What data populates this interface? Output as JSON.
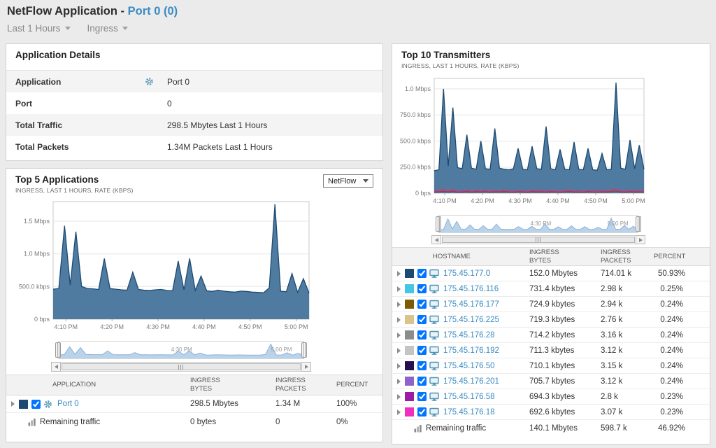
{
  "header": {
    "title_prefix": "NetFlow Application - ",
    "title_link": "Port 0 (0)",
    "time_filter": "Last 1 Hours",
    "direction_filter": "Ingress"
  },
  "application_details": {
    "title": "Application Details",
    "rows": [
      {
        "label": "Application",
        "value": "Port 0",
        "gear": true
      },
      {
        "label": "Port",
        "value": "0",
        "gear": false
      },
      {
        "label": "Total Traffic",
        "value": "298.5 Mbytes Last 1 Hours",
        "gear": false
      },
      {
        "label": "Total Packets",
        "value": "1.34M Packets  Last 1 Hours",
        "gear": false
      }
    ]
  },
  "top5": {
    "title": "Top 5 Applications",
    "subtitle": "INGRESS, LAST 1 HOURS, RATE (KBPS)",
    "source_select": "NetFlow",
    "headers": [
      {
        "l1": "APPLICATION",
        "l2": ""
      },
      {
        "l1": "INGRESS",
        "l2": "BYTES"
      },
      {
        "l1": "INGRESS",
        "l2": "PACKETS"
      },
      {
        "l1": "PERCENT",
        "l2": ""
      }
    ],
    "rows": [
      {
        "swatch": "#1c4a72",
        "name": "Port 0",
        "bytes": "298.5 Mbytes",
        "packets": "1.34 M",
        "percent": "100%"
      }
    ],
    "footer": {
      "name": "Remaining traffic",
      "bytes": "0 bytes",
      "packets": "0",
      "percent": "0%"
    }
  },
  "top10": {
    "title": "Top 10 Transmitters",
    "subtitle": "INGRESS, LAST 1 HOURS, RATE (KBPS)",
    "headers": [
      {
        "l1": "HOSTNAME",
        "l2": ""
      },
      {
        "l1": "INGRESS",
        "l2": "BYTES"
      },
      {
        "l1": "INGRESS",
        "l2": "PACKETS"
      },
      {
        "l1": "PERCENT",
        "l2": ""
      }
    ],
    "rows": [
      {
        "swatch": "#1c4a72",
        "name": "175.45.177.0",
        "bytes": "152.0 Mbytes",
        "packets": "714.01 k",
        "percent": "50.93%"
      },
      {
        "swatch": "#45c6e8",
        "name": "175.45.176.116",
        "bytes": "731.4 kbytes",
        "packets": "2.98 k",
        "percent": "0.25%"
      },
      {
        "swatch": "#7c5c00",
        "name": "175.45.176.177",
        "bytes": "724.9 kbytes",
        "packets": "2.94 k",
        "percent": "0.24%"
      },
      {
        "swatch": "#d9c48a",
        "name": "175.45.176.225",
        "bytes": "719.3 kbytes",
        "packets": "2.76 k",
        "percent": "0.24%"
      },
      {
        "swatch": "#8c8c8c",
        "name": "175.45.176.28",
        "bytes": "714.2 kbytes",
        "packets": "3.16 k",
        "percent": "0.24%"
      },
      {
        "swatch": "#c4c4c4",
        "name": "175.45.176.192",
        "bytes": "711.3 kbytes",
        "packets": "3.12 k",
        "percent": "0.24%"
      },
      {
        "swatch": "#241051",
        "name": "175.45.176.50",
        "bytes": "710.1 kbytes",
        "packets": "3.15 k",
        "percent": "0.24%"
      },
      {
        "swatch": "#8f62c9",
        "name": "175.45.176.201",
        "bytes": "705.7 kbytes",
        "packets": "3.12 k",
        "percent": "0.24%"
      },
      {
        "swatch": "#9c1ca6",
        "name": "175.45.176.58",
        "bytes": "694.3 kbytes",
        "packets": "2.8 k",
        "percent": "0.23%"
      },
      {
        "swatch": "#f02fc2",
        "name": "175.45.176.18",
        "bytes": "692.6 kbytes",
        "packets": "3.07 k",
        "percent": "0.23%"
      }
    ],
    "footer": {
      "name": "Remaining traffic",
      "bytes": "140.1 Mbytes",
      "packets": "598.7 k",
      "percent": "46.92%"
    }
  },
  "chart_data": [
    {
      "id": "top5_applications_chart",
      "type": "area",
      "title": "Top 5 Applications",
      "ylabel": "rate (kbps)",
      "ylim": [
        0,
        1800
      ],
      "yticks": [
        {
          "v": 0,
          "label": "0 bps"
        },
        {
          "v": 500,
          "label": "500.0 kbps"
        },
        {
          "v": 1000,
          "label": "1.0 Mbps"
        },
        {
          "v": 1500,
          "label": "1.5 Mbps"
        }
      ],
      "xticks": [
        "4:10 PM",
        "4:20 PM",
        "4:30 PM",
        "4:40 PM",
        "4:50 PM",
        "5:00 PM"
      ],
      "brush_labels": [
        "4:30 PM",
        "5:00 PM"
      ],
      "grid": true,
      "legend": "none",
      "series": [
        {
          "name": "Port 0",
          "fill": "#47749c",
          "stroke": "#1c4a72",
          "values": [
            460,
            470,
            1430,
            520,
            1340,
            500,
            470,
            465,
            455,
            930,
            470,
            460,
            450,
            445,
            720,
            455,
            445,
            440,
            450,
            455,
            440,
            435,
            890,
            450,
            930,
            440,
            660,
            435,
            425,
            445,
            430,
            420,
            415,
            430,
            425,
            415,
            410,
            405,
            480,
            1760,
            430,
            420,
            700,
            410,
            620,
            400
          ]
        }
      ]
    },
    {
      "id": "top10_transmitters_chart",
      "type": "area",
      "title": "Top 10 Transmitters",
      "ylabel": "rate (kbps)",
      "ylim": [
        0,
        1100
      ],
      "yticks": [
        {
          "v": 0,
          "label": "0 bps"
        },
        {
          "v": 250,
          "label": "250.0 kbps"
        },
        {
          "v": 500,
          "label": "500.0 kbps"
        },
        {
          "v": 750,
          "label": "750.0 kbps"
        },
        {
          "v": 1000,
          "label": "1.0 Mbps"
        }
      ],
      "xticks": [
        "4:10 PM",
        "4:20 PM",
        "4:30 PM",
        "4:40 PM",
        "4:50 PM",
        "5:00 PM"
      ],
      "brush_labels": [
        "4:30 PM",
        "5:00 PM"
      ],
      "grid": true,
      "legend": "none",
      "series": [
        {
          "name": "175.45.177.0",
          "fill": "#47749c",
          "stroke": "#1c4a72",
          "values": [
            215,
            225,
            1000,
            260,
            820,
            245,
            235,
            560,
            240,
            230,
            500,
            235,
            230,
            620,
            240,
            230,
            225,
            235,
            430,
            230,
            225,
            450,
            235,
            230,
            640,
            235,
            225,
            420,
            230,
            225,
            490,
            230,
            225,
            430,
            225,
            220,
            380,
            225,
            230,
            1060,
            240,
            230,
            510,
            235,
            460,
            230
          ]
        },
        {
          "name": "other-transmitters-magenta",
          "fill": "none",
          "stroke": "#c2399b",
          "values": [
            22,
            28,
            35,
            24,
            38,
            20,
            26,
            32,
            22,
            30,
            25,
            32,
            20,
            28,
            24,
            32,
            26,
            22,
            30,
            26,
            20,
            32,
            24,
            28,
            22,
            30,
            26,
            20,
            28,
            32,
            24,
            26,
            20,
            30,
            26,
            22,
            28,
            24,
            32,
            40,
            26,
            22,
            30,
            24,
            28,
            22
          ]
        },
        {
          "name": "other-transmitters-red",
          "fill": "none",
          "stroke": "#b23434",
          "values": [
            12,
            14,
            18,
            12,
            20,
            10,
            13,
            16,
            11,
            15,
            13,
            16,
            10,
            14,
            12,
            16,
            13,
            11,
            15,
            13,
            10,
            16,
            12,
            14,
            11,
            15,
            13,
            10,
            14,
            16,
            12,
            13,
            10,
            15,
            13,
            11,
            14,
            12,
            16,
            21,
            13,
            11,
            15,
            12,
            14,
            11
          ]
        }
      ]
    }
  ],
  "colors": {
    "link": "#3a8bc2",
    "chart_fill": "#47749c",
    "chart_stroke": "#1c4a72",
    "brush_fill": "#b9d3ea",
    "brush_stroke": "#8fb2d6",
    "page_bg": "#ebebeb",
    "panel_border": "#d2d2d2"
  },
  "icons": {
    "gear-icon": "settings gear (dashed circle)",
    "monitor-icon": "computer display",
    "bar-chart-icon": "ascending bars",
    "caret-down-icon": "down triangle",
    "expander-icon": "right triangle"
  }
}
